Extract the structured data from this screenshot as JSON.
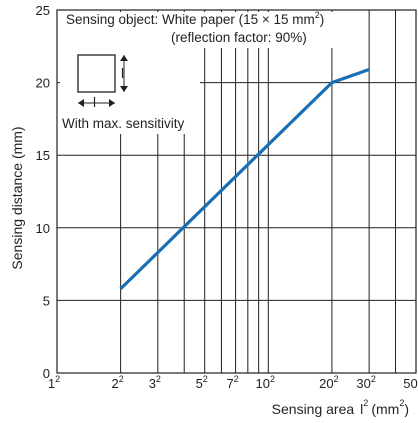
{
  "chart_data": {
    "type": "line",
    "title": "",
    "xlabel": "Sensing area",
    "xlabel_var": "l",
    "xlabel_unit_open": "(mm",
    "xlabel_unit_close": ")",
    "ylabel": "Sensing distance (mm)",
    "x_scale": "log",
    "xlim": [
      1,
      50
    ],
    "ylim": [
      0,
      25
    ],
    "grid": true,
    "x_grid": [
      1,
      2,
      3,
      4,
      5,
      6,
      7,
      8,
      9,
      10,
      20,
      30,
      40,
      50
    ],
    "x_ticks": [
      {
        "value": 1,
        "base": "1"
      },
      {
        "value": 2,
        "base": "2"
      },
      {
        "value": 3,
        "base": "3"
      },
      {
        "value": 5,
        "base": "5"
      },
      {
        "value": 7,
        "base": "7"
      },
      {
        "value": 10,
        "base": "10"
      },
      {
        "value": 20,
        "base": "20"
      },
      {
        "value": 30,
        "base": "30"
      },
      {
        "value": 50,
        "base": "50"
      }
    ],
    "superscript": "2",
    "y_ticks": [
      0,
      5,
      10,
      15,
      20,
      25
    ],
    "series": [
      {
        "color": "#1a6fb4",
        "x": [
          2,
          20,
          30
        ],
        "y": [
          5.8,
          20,
          20.9
        ]
      }
    ],
    "annotations": {
      "line1_prefix": "Sensing object: White paper (15 × 15 mm",
      "line1_suffix": ")",
      "line2": "(reflection factor: 90%)",
      "square_dim": "l",
      "note": "With max. sensitivity"
    }
  }
}
